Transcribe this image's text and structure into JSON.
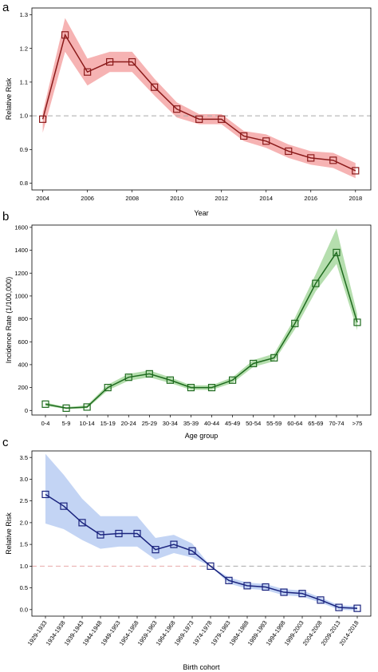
{
  "chart_data": [
    {
      "type": "line",
      "panel_label": "a",
      "xlabel": "Year",
      "ylabel": "Relative Risk",
      "x": [
        2004,
        2005,
        2006,
        2007,
        2008,
        2009,
        2010,
        2011,
        2012,
        2013,
        2014,
        2015,
        2016,
        2017,
        2018
      ],
      "x_ticks": [
        "2004",
        "2006",
        "2008",
        "2010",
        "2012",
        "2014",
        "2016",
        "2018"
      ],
      "xlim": [
        2003.8,
        2018.4
      ],
      "ylim": [
        0.78,
        1.32
      ],
      "y_ticks": [
        "0.8",
        "0.9",
        "1.0",
        "1.1",
        "1.2",
        "1.3"
      ],
      "values": [
        0.99,
        1.24,
        1.13,
        1.16,
        1.16,
        1.085,
        1.02,
        0.99,
        0.99,
        0.94,
        0.925,
        0.895,
        0.875,
        0.868,
        0.837
      ],
      "lower": [
        0.95,
        1.19,
        1.09,
        1.13,
        1.13,
        1.06,
        0.995,
        0.975,
        0.975,
        0.925,
        0.905,
        0.875,
        0.855,
        0.845,
        0.815
      ],
      "upper": [
        1.01,
        1.29,
        1.17,
        1.19,
        1.19,
        1.11,
        1.04,
        1.005,
        1.005,
        0.955,
        0.945,
        0.915,
        0.895,
        0.89,
        0.86
      ],
      "reference_line": 1.0,
      "line_color": "#8b1a1a",
      "band_color": "#f4a6a6",
      "marker": "square"
    },
    {
      "type": "line",
      "panel_label": "b",
      "xlabel": "Age group",
      "ylabel": "Incidence Rate  (1/100,000)",
      "categories": [
        "0-4",
        "5-9",
        "10-14",
        "15-19",
        "20-24",
        "25-29",
        "30-34",
        "35-39",
        "40-44",
        "45-49",
        "50-54",
        "55-59",
        "60-64",
        "65-69",
        "70-74",
        ">75"
      ],
      "ylim": [
        -40,
        1620
      ],
      "y_ticks": [
        "0",
        "200",
        "400",
        "600",
        "800",
        "1000",
        "1200",
        "1400",
        "1600"
      ],
      "values": [
        55,
        20,
        30,
        200,
        290,
        320,
        265,
        200,
        200,
        265,
        410,
        460,
        760,
        1110,
        1380,
        770
      ],
      "lower": [
        40,
        12,
        18,
        175,
        260,
        290,
        240,
        180,
        180,
        240,
        380,
        430,
        710,
        1040,
        1280,
        700
      ],
      "upper": [
        70,
        30,
        45,
        225,
        320,
        350,
        290,
        220,
        220,
        290,
        440,
        495,
        810,
        1190,
        1590,
        840
      ],
      "line_color": "#1f6b1f",
      "band_color": "#a8d8a0",
      "marker": "square"
    },
    {
      "type": "line",
      "panel_label": "c",
      "xlabel": "Birth cohort",
      "ylabel": "Relative Risk",
      "categories": [
        "1929-1933",
        "1934-1938",
        "1939-1943",
        "1944-1948",
        "1949-1953",
        "1954-1958",
        "1959-1963",
        "1964-1968",
        "1969-1973",
        "1974-1978",
        "1979-1983",
        "1984-1988",
        "1989-1993",
        "1994-1998",
        "1999-2003",
        "2004-2008",
        "2009-2013",
        "2014-2018"
      ],
      "ylim": [
        -0.15,
        3.65
      ],
      "y_ticks": [
        "0.0",
        "0.5",
        "1.0",
        "1.5",
        "2.0",
        "2.5",
        "3.0",
        "3.5"
      ],
      "values": [
        2.65,
        2.38,
        2.0,
        1.72,
        1.75,
        1.75,
        1.38,
        1.5,
        1.35,
        1.0,
        0.67,
        0.55,
        0.52,
        0.4,
        0.37,
        0.22,
        0.05,
        0.03
      ],
      "lower": [
        1.98,
        1.85,
        1.6,
        1.4,
        1.45,
        1.45,
        1.15,
        1.3,
        1.2,
        1.0,
        0.6,
        0.48,
        0.45,
        0.33,
        0.3,
        0.16,
        0.0,
        -0.02
      ],
      "upper": [
        3.58,
        3.1,
        2.55,
        2.15,
        2.15,
        2.15,
        1.65,
        1.72,
        1.52,
        1.0,
        0.74,
        0.62,
        0.59,
        0.47,
        0.44,
        0.28,
        0.1,
        0.08
      ],
      "reference_line": 1.0,
      "reference_line_color_left": "#e8aaaa",
      "reference_line_color_right": "#aaaaaa",
      "line_color": "#1a237e",
      "band_color": "#b8cdf2",
      "marker": "square"
    }
  ]
}
